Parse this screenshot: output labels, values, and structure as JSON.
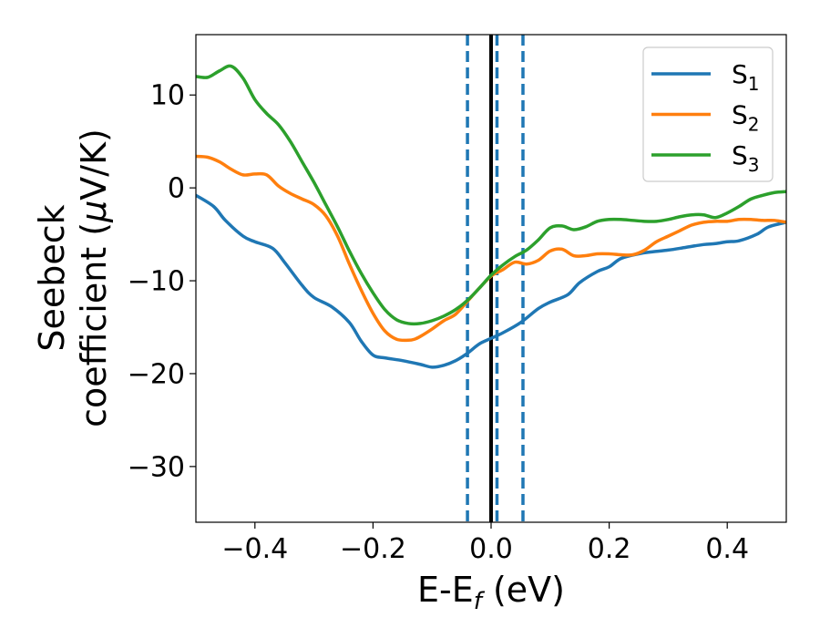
{
  "chart_data": {
    "type": "line",
    "xlabel": "E-E",
    "xlabel_sub": "f",
    "xlabel_unit": " (eV)",
    "ylabel_line1": "Seebeck",
    "ylabel_line2_text": "coefficient  (",
    "ylabel_line2_mu": "μ",
    "ylabel_line2_unit": "V/K)",
    "xlim": [
      -0.5,
      0.5
    ],
    "ylim": [
      -36,
      16.5
    ],
    "xticks": [
      -0.4,
      -0.2,
      0.0,
      0.2,
      0.4
    ],
    "xtick_labels": [
      "−0.4",
      "−0.2",
      "0.0",
      "0.2",
      "0.4"
    ],
    "yticks": [
      -30,
      -20,
      -10,
      0,
      10
    ],
    "ytick_labels": [
      "−30",
      "−20",
      "−10",
      "0",
      "10"
    ],
    "grid": false,
    "legend_position": "top-right",
    "vlines": [
      {
        "x": -0.04,
        "style": "dashed",
        "color": "#1f77b4"
      },
      {
        "x": 0.0,
        "style": "solid",
        "color": "#000000"
      },
      {
        "x": 0.01,
        "style": "dashed",
        "color": "#1f77b4"
      },
      {
        "x": 0.054,
        "style": "dashed",
        "color": "#1f77b4"
      }
    ],
    "series": [
      {
        "name": "S",
        "name_sub": "1",
        "color": "#1f77b4",
        "x": [
          -0.5,
          -0.47,
          -0.45,
          -0.42,
          -0.4,
          -0.37,
          -0.35,
          -0.32,
          -0.3,
          -0.27,
          -0.24,
          -0.22,
          -0.2,
          -0.18,
          -0.15,
          -0.12,
          -0.1,
          -0.08,
          -0.06,
          -0.04,
          -0.02,
          0.0,
          0.02,
          0.05,
          0.08,
          0.1,
          0.13,
          0.15,
          0.18,
          0.2,
          0.22,
          0.25,
          0.27,
          0.3,
          0.33,
          0.36,
          0.38,
          0.4,
          0.42,
          0.45,
          0.47,
          0.5
        ],
        "y": [
          -0.8,
          -2.0,
          -3.5,
          -5.2,
          -5.8,
          -6.5,
          -8.0,
          -10.5,
          -11.8,
          -12.8,
          -14.5,
          -16.5,
          -18.0,
          -18.3,
          -18.6,
          -19.0,
          -19.3,
          -19.1,
          -18.6,
          -17.8,
          -16.8,
          -16.2,
          -15.6,
          -14.5,
          -13.0,
          -12.3,
          -11.5,
          -10.2,
          -9.0,
          -8.5,
          -7.6,
          -7.1,
          -6.9,
          -6.7,
          -6.4,
          -6.1,
          -6.0,
          -5.8,
          -5.7,
          -5.0,
          -4.2,
          -3.7
        ]
      },
      {
        "name": "S",
        "name_sub": "2",
        "color": "#ff7f0e",
        "x": [
          -0.5,
          -0.48,
          -0.46,
          -0.44,
          -0.42,
          -0.4,
          -0.38,
          -0.36,
          -0.34,
          -0.32,
          -0.3,
          -0.28,
          -0.26,
          -0.24,
          -0.22,
          -0.2,
          -0.18,
          -0.16,
          -0.14,
          -0.13,
          -0.12,
          -0.1,
          -0.08,
          -0.06,
          -0.04,
          -0.02,
          0.0,
          0.02,
          0.04,
          0.06,
          0.08,
          0.1,
          0.12,
          0.14,
          0.16,
          0.18,
          0.2,
          0.22,
          0.24,
          0.26,
          0.28,
          0.3,
          0.32,
          0.34,
          0.36,
          0.38,
          0.4,
          0.42,
          0.44,
          0.46,
          0.48,
          0.5
        ],
        "y": [
          3.4,
          3.3,
          2.8,
          2.0,
          1.4,
          1.5,
          1.4,
          0.2,
          -0.6,
          -1.2,
          -1.8,
          -3.0,
          -5.2,
          -8.2,
          -11.0,
          -13.5,
          -15.4,
          -16.3,
          -16.4,
          -16.3,
          -16.0,
          -15.2,
          -14.3,
          -13.6,
          -12.2,
          -10.8,
          -9.5,
          -8.8,
          -8.0,
          -8.2,
          -7.8,
          -6.8,
          -6.6,
          -7.3,
          -7.3,
          -7.1,
          -7.1,
          -7.2,
          -7.2,
          -6.7,
          -5.8,
          -5.2,
          -4.6,
          -4.0,
          -3.7,
          -3.6,
          -3.6,
          -3.4,
          -3.4,
          -3.5,
          -3.5,
          -3.7
        ]
      },
      {
        "name": "S",
        "name_sub": "3",
        "color": "#2ca02c",
        "x": [
          -0.5,
          -0.48,
          -0.46,
          -0.44,
          -0.42,
          -0.4,
          -0.38,
          -0.36,
          -0.34,
          -0.32,
          -0.3,
          -0.28,
          -0.26,
          -0.24,
          -0.22,
          -0.2,
          -0.18,
          -0.16,
          -0.14,
          -0.12,
          -0.1,
          -0.08,
          -0.06,
          -0.04,
          -0.02,
          0.0,
          0.02,
          0.04,
          0.06,
          0.08,
          0.1,
          0.12,
          0.14,
          0.16,
          0.18,
          0.2,
          0.22,
          0.24,
          0.26,
          0.28,
          0.3,
          0.32,
          0.34,
          0.36,
          0.38,
          0.4,
          0.42,
          0.44,
          0.46,
          0.48,
          0.5
        ],
        "y": [
          12.0,
          11.9,
          12.6,
          13.1,
          11.8,
          9.5,
          8.0,
          6.8,
          5.0,
          2.8,
          0.6,
          -1.8,
          -4.2,
          -6.8,
          -9.2,
          -11.3,
          -13.1,
          -14.2,
          -14.6,
          -14.6,
          -14.3,
          -13.8,
          -13.1,
          -12.1,
          -10.8,
          -9.4,
          -8.3,
          -7.4,
          -6.7,
          -5.6,
          -4.3,
          -4.1,
          -4.5,
          -4.2,
          -3.6,
          -3.4,
          -3.4,
          -3.5,
          -3.6,
          -3.6,
          -3.4,
          -3.1,
          -2.9,
          -2.9,
          -3.2,
          -2.7,
          -2.0,
          -1.2,
          -0.8,
          -0.5,
          -0.4
        ]
      }
    ]
  }
}
